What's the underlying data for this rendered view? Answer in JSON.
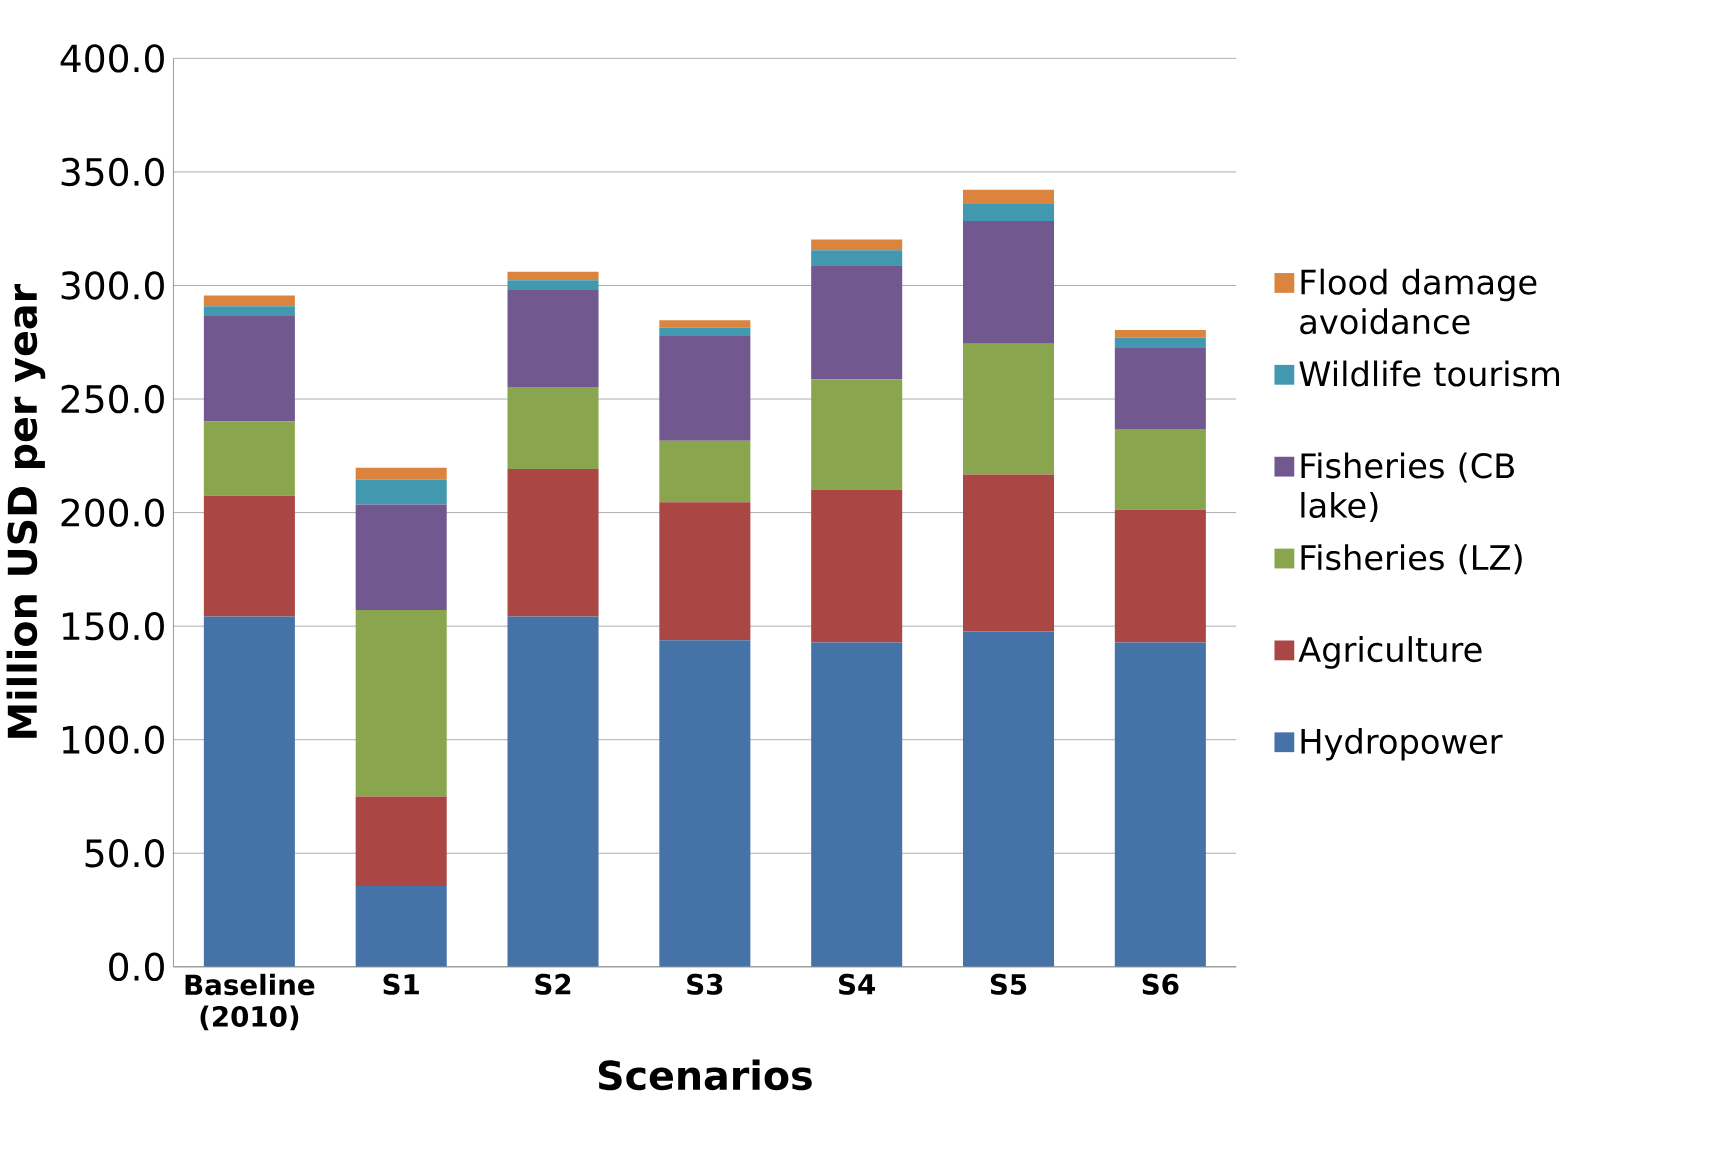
{
  "chart_data": {
    "type": "bar",
    "stacked": true,
    "xlabel": "Scenarios",
    "ylabel": "Million USD per year",
    "categories": [
      "Baseline (2010)",
      "S1",
      "S2",
      "S3",
      "S4",
      "S5",
      "S6"
    ],
    "series": [
      {
        "name": "Hydropower",
        "color": "#4572a7",
        "values": [
          154.2,
          35.6,
          154.2,
          143.8,
          142.8,
          147.6,
          142.8
        ]
      },
      {
        "name": "Agriculture",
        "color": "#aa4643",
        "values": [
          53.2,
          39.4,
          65.0,
          60.7,
          67.4,
          69.2,
          58.4
        ]
      },
      {
        "name": "Fisheries (LZ)",
        "color": "#89a54e",
        "values": [
          32.7,
          82.1,
          36.1,
          27.1,
          48.4,
          57.5,
          35.6
        ]
      },
      {
        "name": "Fisheries (CB lake)",
        "color": "#71588f",
        "values": [
          46.5,
          46.5,
          42.7,
          46.5,
          50.3,
          54.1,
          36.0
        ]
      },
      {
        "name": "Wildlife tourism",
        "color": "#4198af",
        "values": [
          4.3,
          10.9,
          4.3,
          3.3,
          6.6,
          7.5,
          4.3
        ]
      },
      {
        "name": "Flood damage avoidance",
        "color": "#db843d",
        "values": [
          4.7,
          5.2,
          3.7,
          3.3,
          4.8,
          6.2,
          3.3
        ]
      }
    ],
    "ylim": [
      0,
      400
    ],
    "yticks": [
      {
        "value": 0,
        "label": "0.0"
      },
      {
        "value": 50,
        "label": "50.0"
      },
      {
        "value": 100,
        "label": "100.0"
      },
      {
        "value": 150,
        "label": "150.0"
      },
      {
        "value": 200,
        "label": "200.0"
      },
      {
        "value": 250,
        "label": "250.0"
      },
      {
        "value": 300,
        "label": "300.0"
      },
      {
        "value": 350,
        "label": "350.0"
      },
      {
        "value": 400,
        "label": "400.0"
      }
    ],
    "grid": "y",
    "legend": "right"
  }
}
